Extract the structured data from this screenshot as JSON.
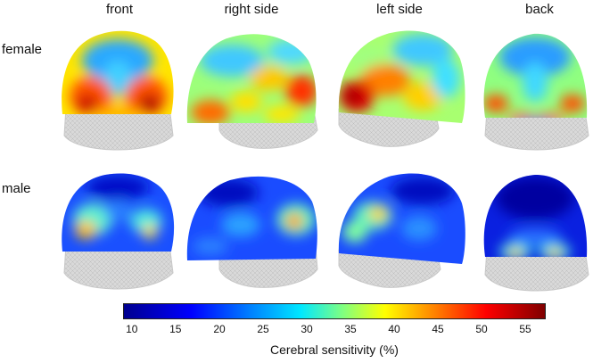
{
  "columns": [
    "front",
    "right side",
    "left side",
    "back"
  ],
  "rows": [
    "female",
    "male"
  ],
  "colorbar": {
    "label": "Cerebral sensitivity (%)",
    "ticks": [
      "10",
      "15",
      "20",
      "25",
      "30",
      "35",
      "40",
      "45",
      "50",
      "55"
    ],
    "range": [
      9,
      57
    ],
    "colors": [
      "#00008f",
      "#0000ff",
      "#0080ff",
      "#00e8ff",
      "#80ff80",
      "#ffff00",
      "#ff8000",
      "#ff0000",
      "#800000"
    ]
  }
}
